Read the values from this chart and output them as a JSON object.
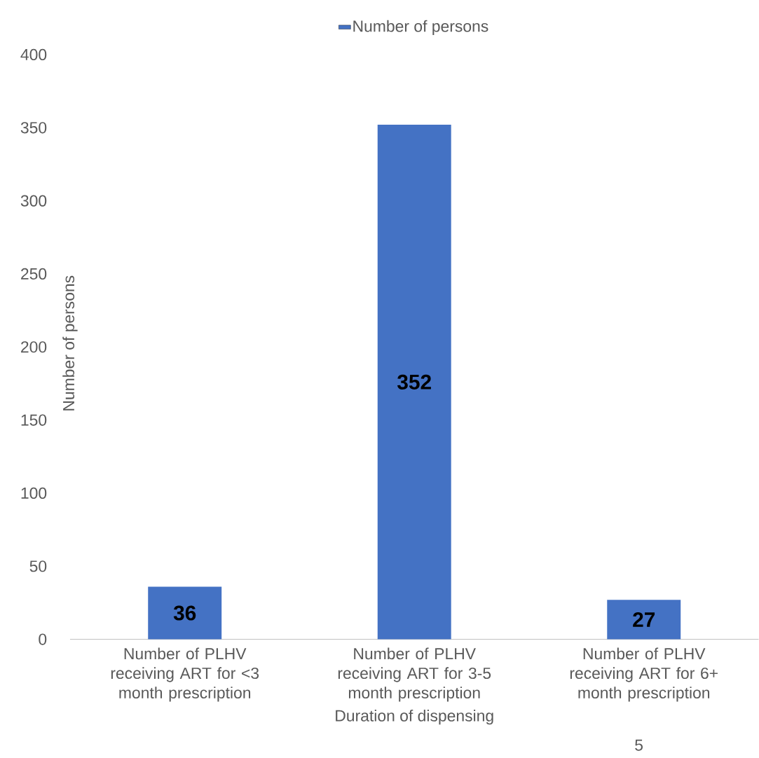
{
  "chart_data": {
    "type": "bar",
    "xlabel": "Duration of dispensing",
    "ylabel": "Number of persons",
    "categories": [
      "Number of PLHV receiving ART for <3 month prescription",
      "Number of PLHV receiving ART for 3-5 month prescription",
      "Number of PLHV receiving ART for 6+ month prescription"
    ],
    "series": [
      {
        "name": "Number of persons",
        "color": "#4472c4",
        "values": [
          36,
          352,
          27
        ]
      }
    ],
    "ylim": [
      0,
      400
    ],
    "yticks": [
      0,
      50,
      100,
      150,
      200,
      250,
      300,
      350,
      400
    ],
    "data_labels": true,
    "legend": "top",
    "grid": false,
    "annotations": [
      "5"
    ]
  }
}
